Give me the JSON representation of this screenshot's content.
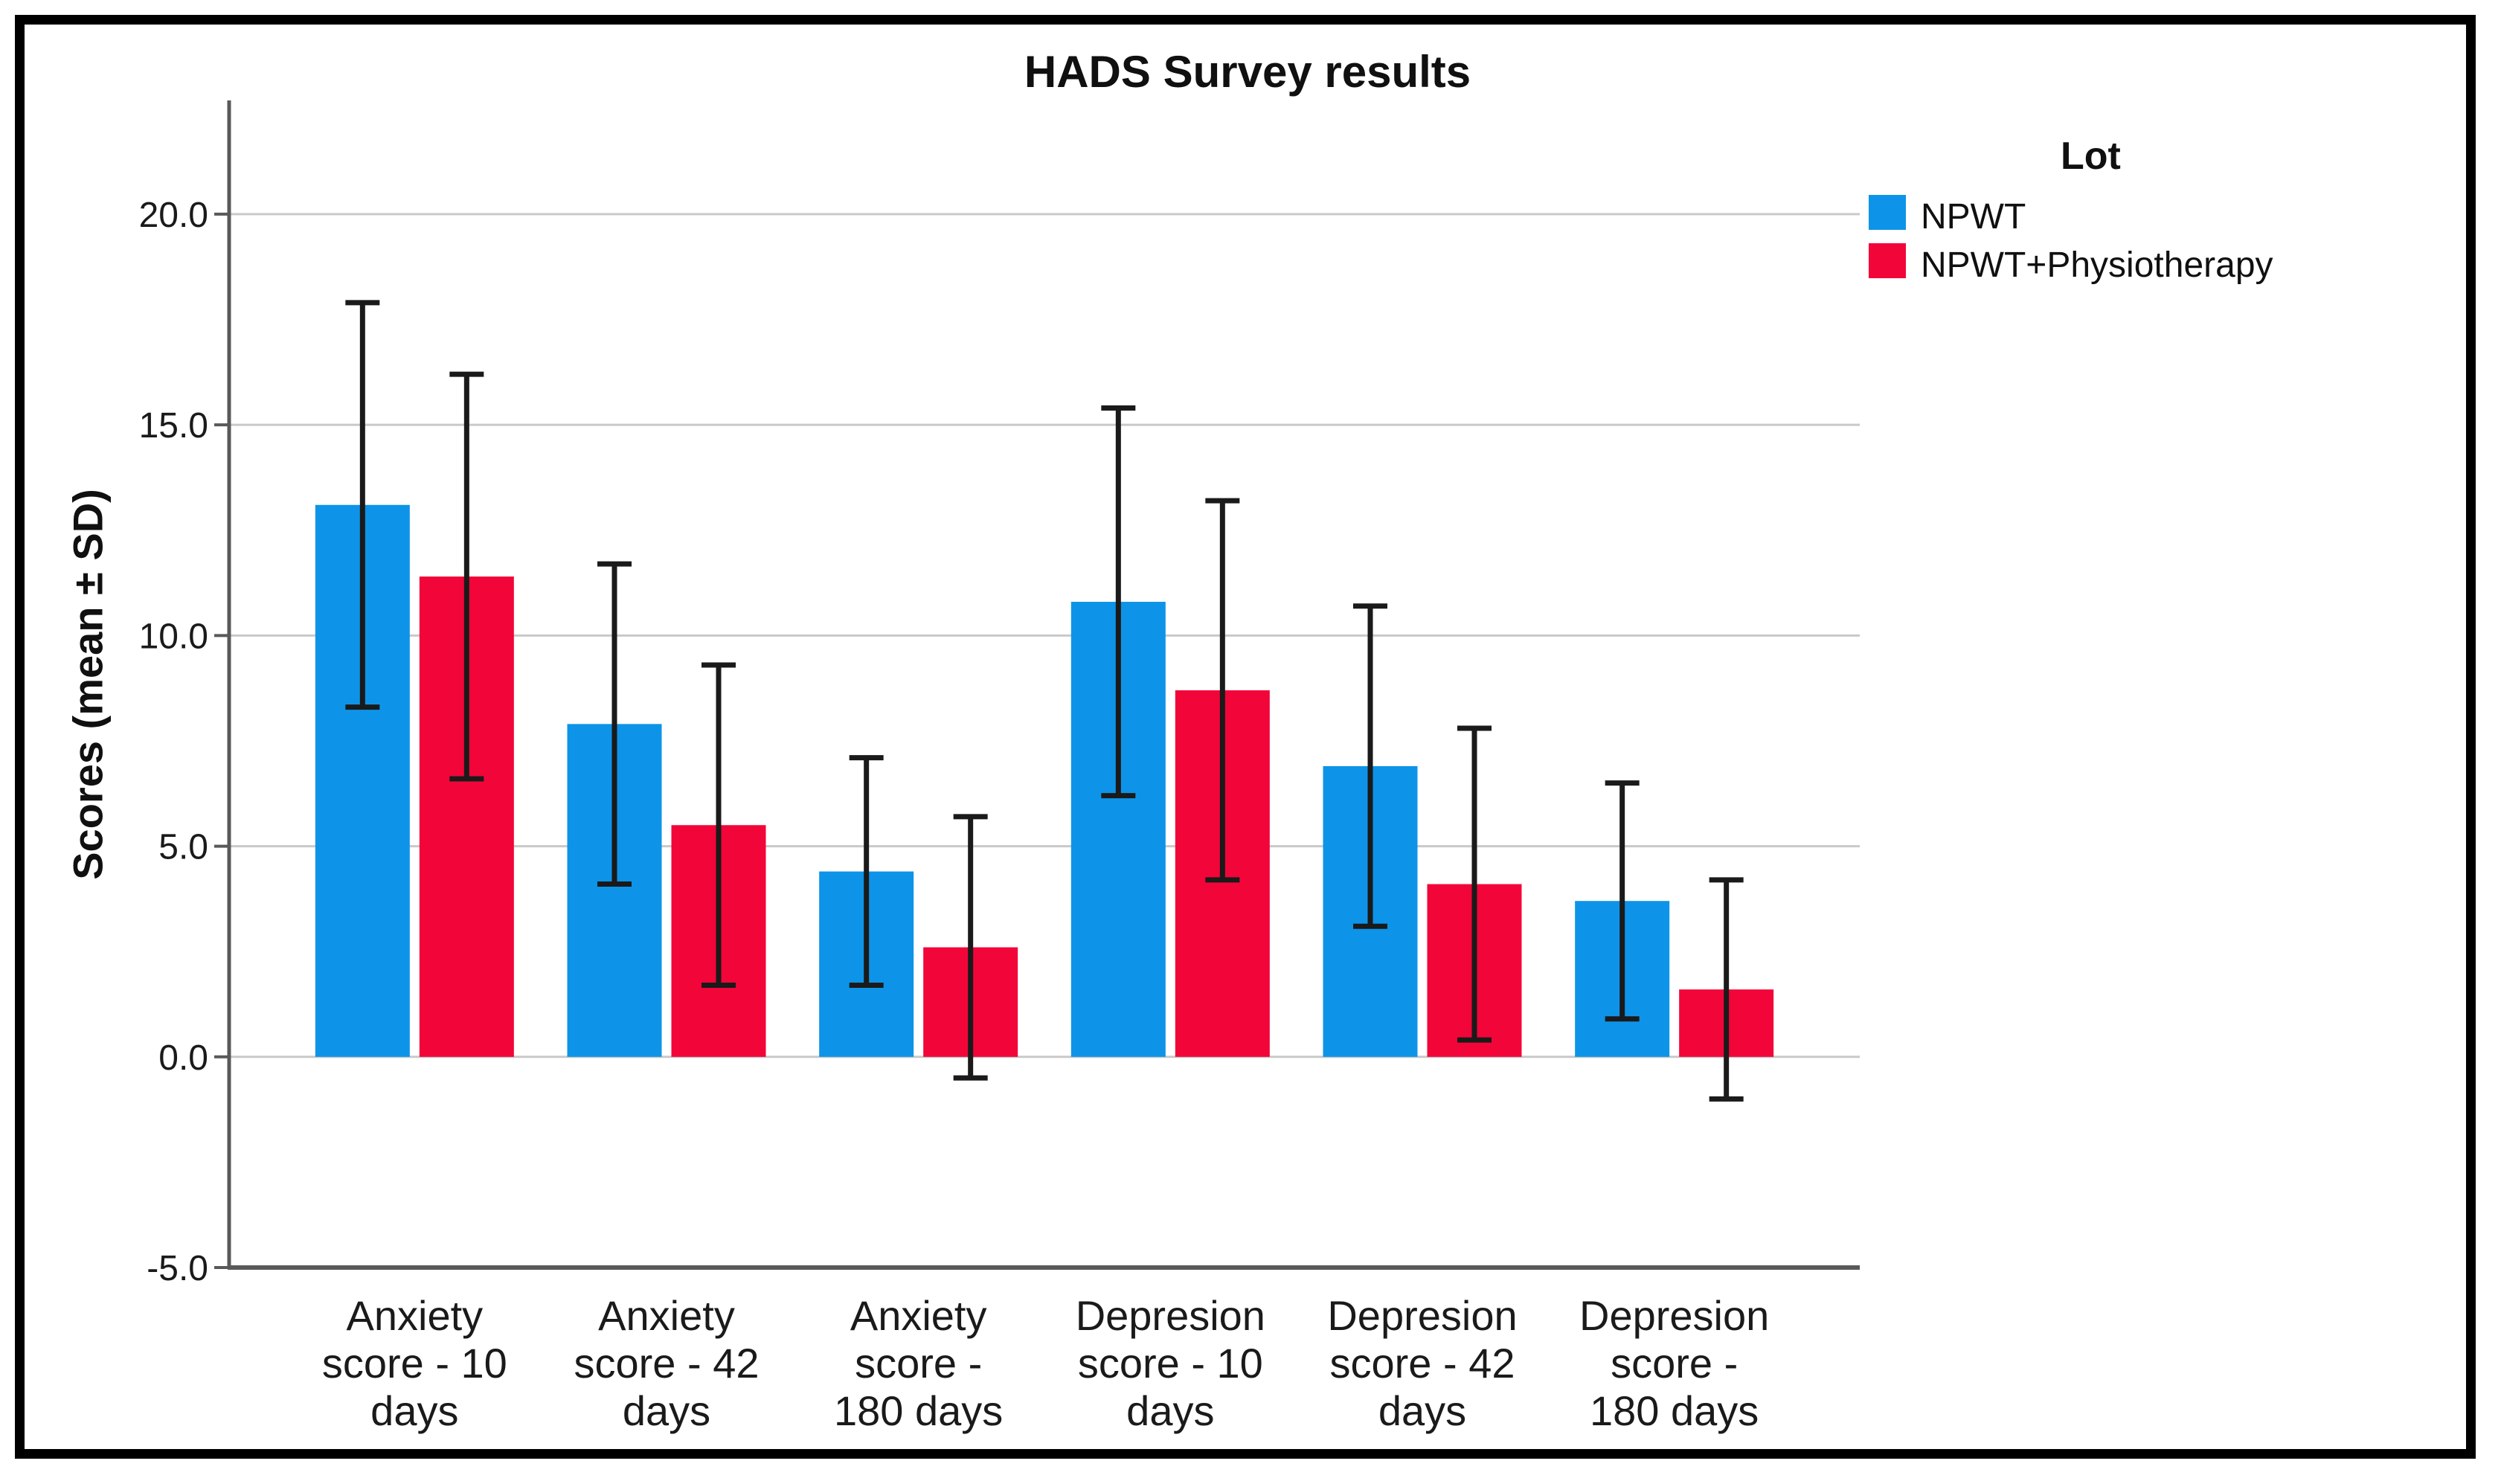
{
  "chart_data": {
    "type": "bar",
    "title": "HADS Survey results",
    "xlabel": "",
    "ylabel": "Scores (mean ± SD)",
    "error_bars": "mean ± SD whiskers on every bar",
    "categories": [
      "Anxiety score - 10 days",
      "Anxiety score - 42 days",
      "Anxiety score - 180 days",
      "Depresion score - 10 days",
      "Depresion score - 42 days",
      "Depresion score - 180 days"
    ],
    "category_lines": [
      [
        "Anxiety",
        "score - 10",
        "days"
      ],
      [
        "Anxiety",
        "score - 42",
        "days"
      ],
      [
        "Anxiety",
        "score -",
        "180 days"
      ],
      [
        "Depresion",
        "score - 10",
        "days"
      ],
      [
        "Depresion",
        "score - 42",
        "days"
      ],
      [
        "Depresion",
        "score -",
        "180 days"
      ]
    ],
    "series": [
      {
        "name": "NPWT",
        "color": "#0d94e8",
        "values": [
          13.1,
          7.9,
          4.4,
          10.8,
          6.9,
          3.7
        ],
        "sd": [
          4.8,
          3.8,
          2.7,
          4.6,
          3.8,
          2.8
        ]
      },
      {
        "name": "NPWT+Physiotherapy",
        "color": "#f20538",
        "values": [
          11.4,
          5.5,
          2.6,
          8.7,
          4.1,
          1.6
        ],
        "sd": [
          4.8,
          3.8,
          3.1,
          4.5,
          3.7,
          2.6
        ]
      }
    ],
    "legend": {
      "title": "Lot",
      "position": "top-right"
    },
    "y_ticks": [
      20.0,
      15.0,
      10.0,
      5.0,
      0.0,
      -5.0
    ],
    "y_tick_labels": [
      "20.0",
      "15.0",
      "10.0",
      "5.0",
      "0.0",
      "-5.0"
    ],
    "ylim": [
      -5,
      22.7
    ],
    "grid": true,
    "colors": {
      "gridline": "#c9c9c9",
      "axis": "#595959",
      "error_bar": "#1a1a1a",
      "text": "#1a1a1a"
    }
  }
}
